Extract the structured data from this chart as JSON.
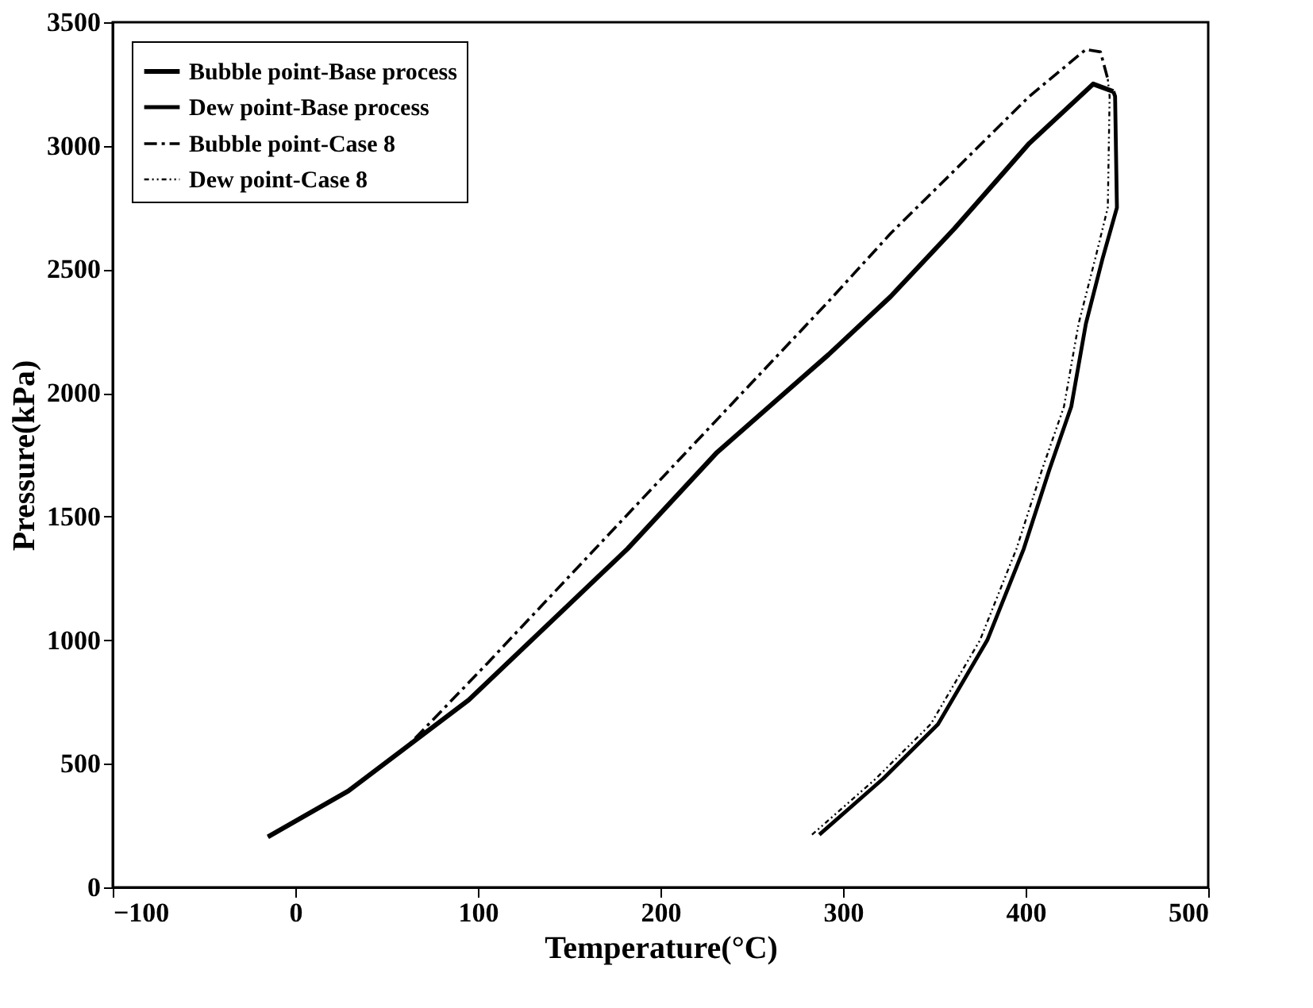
{
  "chart_data": {
    "type": "line",
    "xlabel": "Temperature(°C)",
    "ylabel": "Pressure(kPa)",
    "xlim": [
      -100,
      500
    ],
    "xticks": [
      -100,
      0,
      100,
      200,
      300,
      400,
      500
    ],
    "ylim": [
      0,
      3500
    ],
    "yticks": [
      0,
      500,
      1000,
      1500,
      2000,
      2500,
      3000,
      3500
    ],
    "grid": false,
    "legend": "top left",
    "marker": "none",
    "series": [
      {
        "name": "Bubble point-Base process",
        "color": "#000000",
        "line_style": "solid",
        "x": [
          -15,
          29,
          95,
          182,
          231,
          292,
          326,
          361,
          402,
          437,
          448
        ],
        "values": [
          204,
          390,
          758,
          1370,
          1760,
          2155,
          2390,
          2665,
          3010,
          3250,
          3220
        ]
      },
      {
        "name": "Dew point-Base process",
        "color": "#000000",
        "line_style": "solid",
        "x": [
          287,
          322,
          352,
          379,
          399,
          413,
          425,
          433,
          442,
          450,
          449,
          448
        ],
        "values": [
          213,
          440,
          660,
          1000,
          1370,
          1690,
          1945,
          2280,
          2540,
          2750,
          3200,
          3220
        ]
      },
      {
        "name": "Bubble point-Case 8",
        "color": "#000000",
        "line_style": "dashed",
        "x": [
          -15,
          29,
          60,
          105,
          200,
          292,
          326,
          361,
          402,
          433,
          441,
          445
        ],
        "values": [
          204,
          390,
          560,
          905,
          1650,
          2370,
          2645,
          2900,
          3200,
          3390,
          3380,
          3270
        ]
      },
      {
        "name": "Dew point-Case 8",
        "color": "#000000",
        "line_style": "dotted",
        "x": [
          283,
          318,
          348,
          375,
          395,
          409,
          421,
          429,
          438,
          445,
          446,
          445
        ],
        "values": [
          213,
          440,
          660,
          1000,
          1370,
          1690,
          1945,
          2280,
          2540,
          2750,
          3200,
          3270
        ]
      }
    ]
  }
}
